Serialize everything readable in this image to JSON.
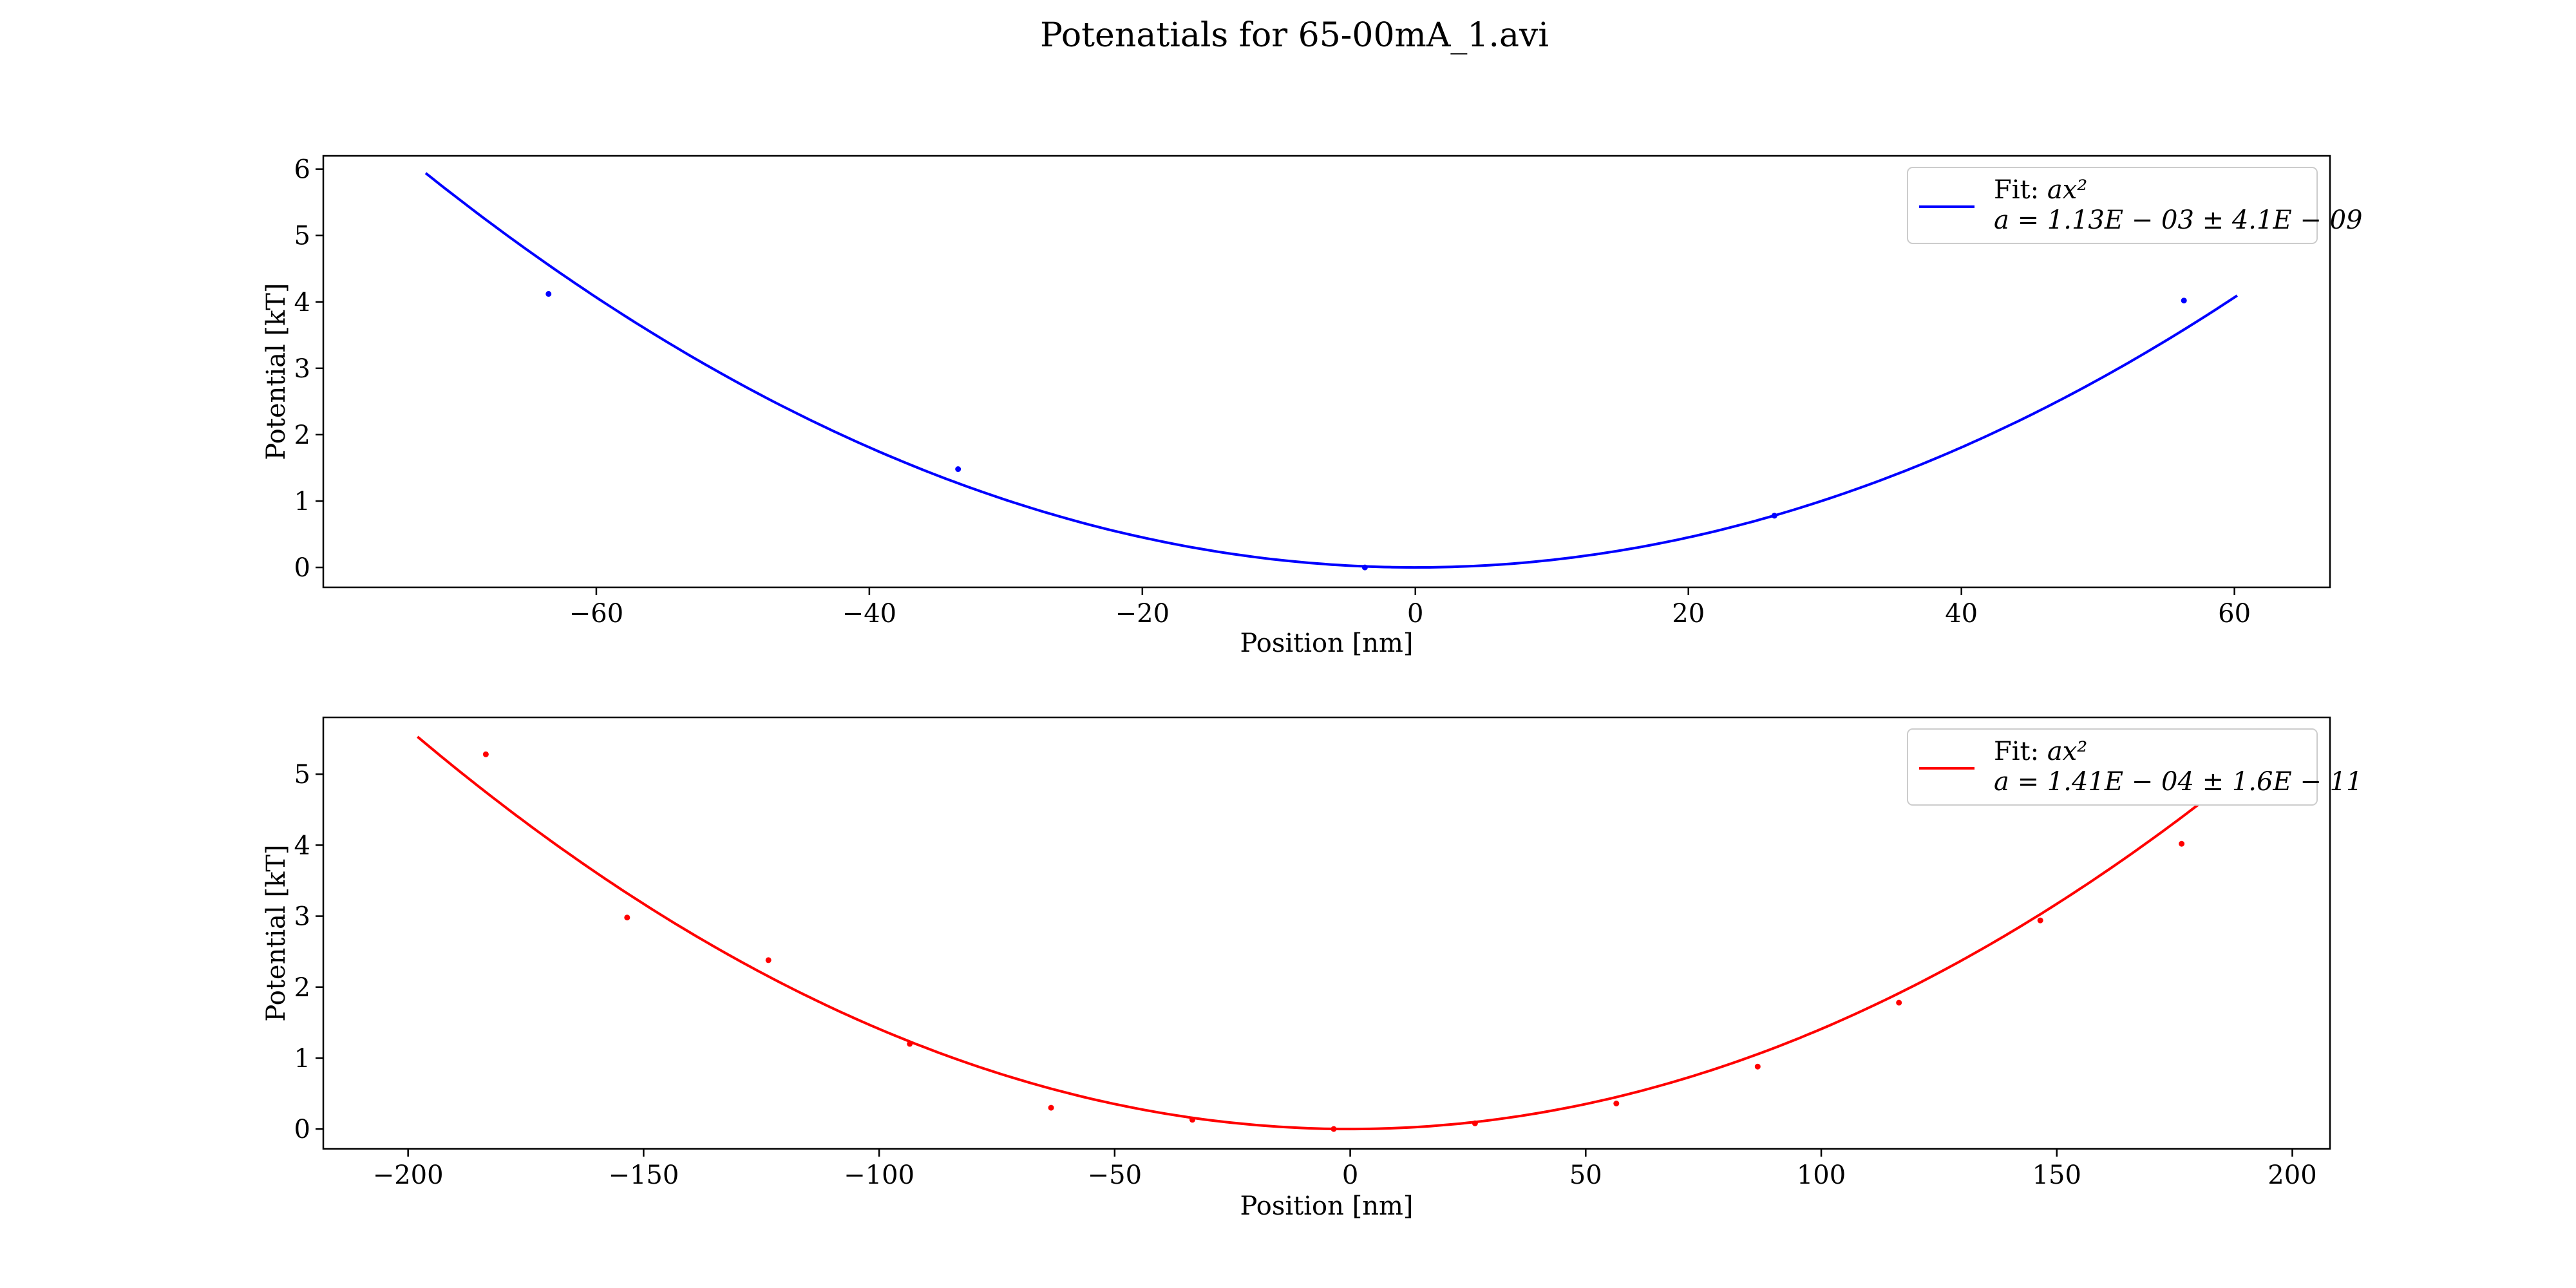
{
  "figure": {
    "title": "Potenatials for 65-00mA_1.avi"
  },
  "chart_data": [
    {
      "type": "scatter",
      "name": "top",
      "color": "#0000ff",
      "xlabel": "Position [nm]",
      "ylabel": "Potential [kT]",
      "xlim": [
        -80,
        67
      ],
      "ylim": [
        -0.3,
        6.2
      ],
      "xticks": [
        -60,
        -40,
        -20,
        0,
        20,
        40,
        60
      ],
      "xtick_labels": [
        "−60",
        "−40",
        "−20",
        "0",
        "20",
        "40",
        "60"
      ],
      "yticks": [
        0,
        1,
        2,
        3,
        4,
        5,
        6
      ],
      "ytick_labels": [
        "0",
        "1",
        "2",
        "3",
        "4",
        "5",
        "6"
      ],
      "grid": false,
      "legend_position": "top-right",
      "points": {
        "x": [
          -63.5,
          -33.5,
          -3.7,
          26.3,
          56.3
        ],
        "y": [
          4.12,
          1.48,
          0.0,
          0.78,
          4.02
        ]
      },
      "fit": {
        "model": "a*x^2",
        "a": 0.00113,
        "x_range": [
          -72.5,
          60.2
        ],
        "legend_line1_prefix": "Fit: ",
        "legend_line1_math": "ax²",
        "legend_line2": "a = 1.13E − 03 ± 4.1E − 09"
      }
    },
    {
      "type": "scatter",
      "name": "bottom",
      "color": "#ff0000",
      "xlabel": "Position [nm]",
      "ylabel": "Potential [kT]",
      "xlim": [
        -218,
        208
      ],
      "ylim": [
        -0.28,
        5.8
      ],
      "xticks": [
        -200,
        -150,
        -100,
        -50,
        0,
        50,
        100,
        150,
        200
      ],
      "xtick_labels": [
        "−200",
        "−150",
        "−100",
        "−50",
        "0",
        "50",
        "100",
        "150",
        "200"
      ],
      "yticks": [
        0,
        1,
        2,
        3,
        4,
        5
      ],
      "ytick_labels": [
        "0",
        "1",
        "2",
        "3",
        "4",
        "5"
      ],
      "grid": false,
      "legend_position": "top-right",
      "points": {
        "x": [
          -183.5,
          -153.5,
          -123.5,
          -93.5,
          -63.5,
          -33.5,
          -3.5,
          26.5,
          56.5,
          86.5,
          116.5,
          146.5,
          176.5
        ],
        "y": [
          5.28,
          2.98,
          2.38,
          1.2,
          0.3,
          0.13,
          0.0,
          0.08,
          0.36,
          0.88,
          1.78,
          2.94,
          4.02
        ]
      },
      "fit": {
        "model": "a*x^2",
        "a": 0.000141,
        "x_range": [
          -198,
          187
        ],
        "legend_line1_prefix": "Fit: ",
        "legend_line1_math": "ax²",
        "legend_line2": "a = 1.41E − 04 ± 1.6E − 11"
      }
    }
  ]
}
